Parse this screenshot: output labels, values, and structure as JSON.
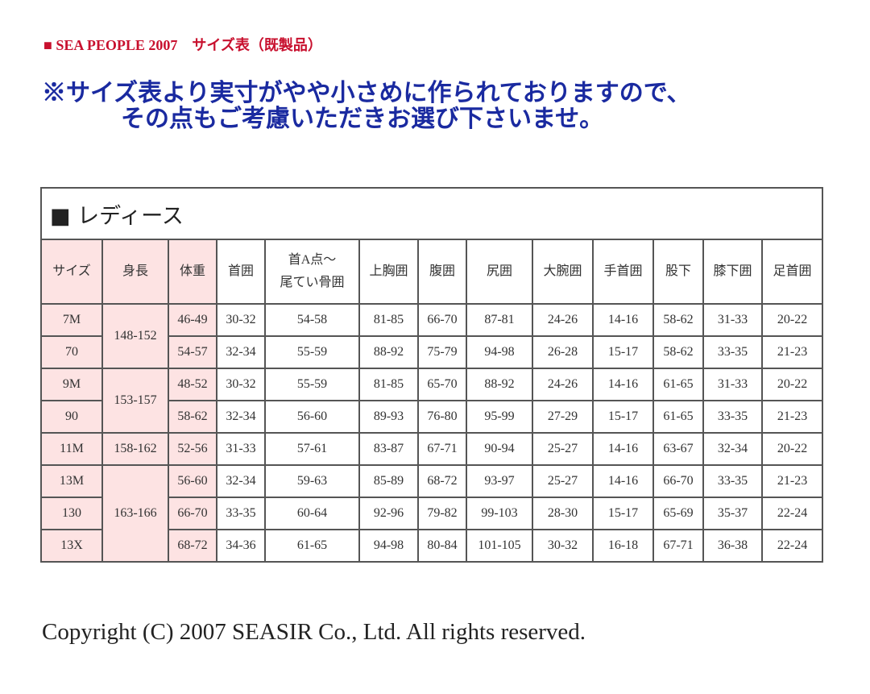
{
  "header": {
    "title": "■ SEA PEOPLE 2007　サイズ表（既製品）"
  },
  "notice": [
    "※サイズ表より実寸がやや小さめに作られておりますので、",
    "その点もご考慮いただきお選び下さいませ。"
  ],
  "table": {
    "title": "■ レディース",
    "columns": [
      "サイズ",
      "身長",
      "体重",
      "首囲",
      [
        "首A点〜",
        "尾てい骨囲"
      ],
      "上胸囲",
      "腹囲",
      "尻囲",
      "大腕囲",
      "手首囲",
      "股下",
      "膝下囲",
      "足首囲"
    ],
    "rows": [
      [
        "7M",
        "148-152",
        "46-49",
        "30-32",
        "54-58",
        "81-85",
        "66-70",
        "87-81",
        "24-26",
        "14-16",
        "58-62",
        "31-33",
        "20-22"
      ],
      [
        "70",
        null,
        "54-57",
        "32-34",
        "55-59",
        "88-92",
        "75-79",
        "94-98",
        "26-28",
        "15-17",
        "58-62",
        "33-35",
        "21-23"
      ],
      [
        "9M",
        "153-157",
        "48-52",
        "30-32",
        "55-59",
        "81-85",
        "65-70",
        "88-92",
        "24-26",
        "14-16",
        "61-65",
        "31-33",
        "20-22"
      ],
      [
        "90",
        null,
        "58-62",
        "32-34",
        "56-60",
        "89-93",
        "76-80",
        "95-99",
        "27-29",
        "15-17",
        "61-65",
        "33-35",
        "21-23"
      ],
      [
        "11M",
        "158-162",
        "52-56",
        "31-33",
        "57-61",
        "83-87",
        "67-71",
        "90-94",
        "25-27",
        "14-16",
        "63-67",
        "32-34",
        "20-22"
      ],
      [
        "13M",
        "163-166",
        "56-60",
        "32-34",
        "59-63",
        "85-89",
        "68-72",
        "93-97",
        "25-27",
        "14-16",
        "66-70",
        "33-35",
        "21-23"
      ],
      [
        "130",
        null,
        "66-70",
        "33-35",
        "60-64",
        "92-96",
        "79-82",
        "99-103",
        "28-30",
        "15-17",
        "65-69",
        "35-37",
        "22-24"
      ],
      [
        "13X",
        null,
        "68-72",
        "34-36",
        "61-65",
        "94-98",
        "80-84",
        "101-105",
        "30-32",
        "16-18",
        "67-71",
        "36-38",
        "22-24"
      ]
    ]
  },
  "footer": {
    "copyright": "Copyright (C) 2007 SEASIR Co., Ltd. All rights reserved."
  }
}
